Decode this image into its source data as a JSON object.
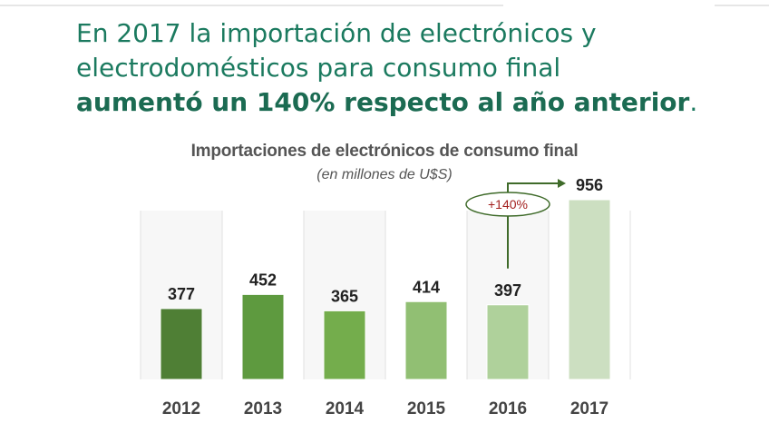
{
  "headline": {
    "line1": "En 2017 la importación de electrónicos y",
    "line2": "electrodomésticos para consumo final",
    "line3_bold": "aumentó un 140% respecto al año anterior",
    "line3_end": "."
  },
  "chart_data": {
    "type": "bar",
    "title": "Importaciones de electrónicos de consumo final",
    "subtitle": "(en millones de U$S)",
    "categories": [
      "2012",
      "2013",
      "2014",
      "2015",
      "2016",
      "2017"
    ],
    "values": [
      377,
      452,
      365,
      414,
      397,
      956
    ],
    "bar_colors": [
      "#4f7f35",
      "#5e9a3f",
      "#74ad4c",
      "#91bf73",
      "#afd19b",
      "#ccdfc1"
    ],
    "annotation": {
      "text": "+140%",
      "from": "2016",
      "to": "2017",
      "color": "#a3201e",
      "arrow_color": "#3f6b2a"
    },
    "ylim": [
      0,
      1100
    ],
    "grid": false
  }
}
